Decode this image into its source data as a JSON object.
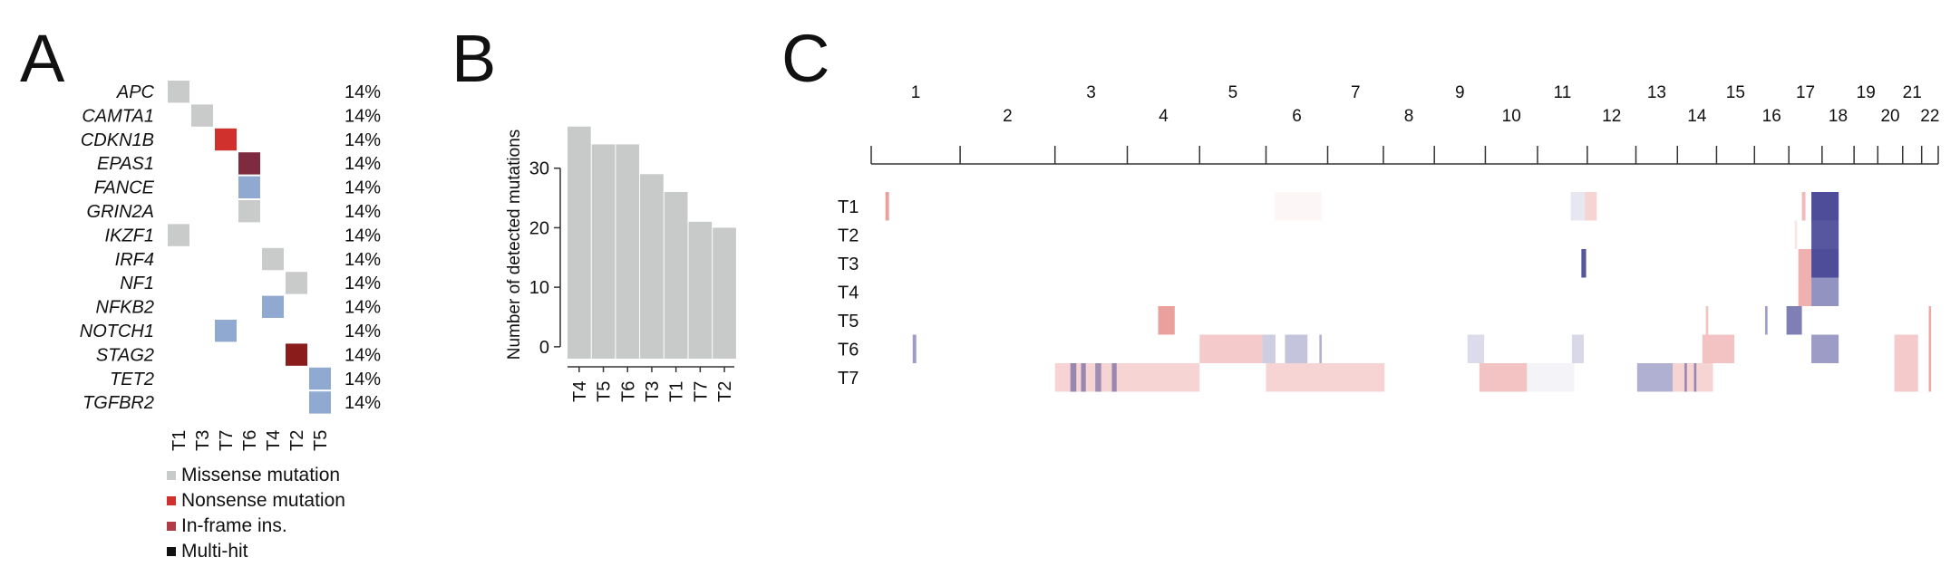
{
  "panels": {
    "a_label": "A",
    "b_label": "B",
    "c_label": "C"
  },
  "colors": {
    "missense": "#c9cbca",
    "nonsense": "#d0312d",
    "inframe": "#7e2a3f",
    "inframe_legend": "#b03c48",
    "multihit": "#111111",
    "blue": "#8fa9d1",
    "darkred": "#8b1c1c",
    "bar": "#c8cac9",
    "gain": "#d9534f",
    "loss": "#3a3a8f"
  },
  "chart_data": [
    {
      "type": "heatmap",
      "genes": [
        "APC",
        "CAMTA1",
        "CDKN1B",
        "EPAS1",
        "FANCE",
        "GRIN2A",
        "IKZF1",
        "IRF4",
        "NF1",
        "NFKB2",
        "NOTCH1",
        "STAG2",
        "TET2",
        "TGFBR2"
      ],
      "percentages": [
        "14%",
        "14%",
        "14%",
        "14%",
        "14%",
        "14%",
        "14%",
        "14%",
        "14%",
        "14%",
        "14%",
        "14%",
        "14%",
        "14%"
      ],
      "samples": [
        "T1",
        "T3",
        "T7",
        "T6",
        "T4",
        "T2",
        "T5"
      ],
      "cells": [
        {
          "gene": "APC",
          "sample": "T1",
          "type": "missense"
        },
        {
          "gene": "CAMTA1",
          "sample": "T3",
          "type": "missense"
        },
        {
          "gene": "CDKN1B",
          "sample": "T7",
          "type": "nonsense"
        },
        {
          "gene": "EPAS1",
          "sample": "T6",
          "type": "inframe"
        },
        {
          "gene": "FANCE",
          "sample": "T6",
          "type": "blue"
        },
        {
          "gene": "GRIN2A",
          "sample": "T6",
          "type": "missense"
        },
        {
          "gene": "IKZF1",
          "sample": "T1",
          "type": "missense"
        },
        {
          "gene": "IRF4",
          "sample": "T4",
          "type": "missense"
        },
        {
          "gene": "NF1",
          "sample": "T2",
          "type": "missense"
        },
        {
          "gene": "NFKB2",
          "sample": "T4",
          "type": "blue"
        },
        {
          "gene": "NOTCH1",
          "sample": "T7",
          "type": "blue"
        },
        {
          "gene": "STAG2",
          "sample": "T2",
          "type": "darkred"
        },
        {
          "gene": "TET2",
          "sample": "T5",
          "type": "blue"
        },
        {
          "gene": "TGFBR2",
          "sample": "T5",
          "type": "blue"
        }
      ],
      "legend": [
        {
          "label": "Missense mutation",
          "color_key": "missense"
        },
        {
          "label": "Nonsense mutation",
          "color_key": "nonsense"
        },
        {
          "label": "In-frame ins.",
          "color_key": "inframe_legend"
        },
        {
          "label": "Multi-hit",
          "color_key": "multihit"
        }
      ]
    },
    {
      "type": "bar",
      "categories": [
        "T4",
        "T5",
        "T6",
        "T3",
        "T1",
        "T7",
        "T2"
      ],
      "values": [
        37,
        34,
        34,
        29,
        26,
        21,
        20
      ],
      "ylabel": "Number of detected mutations",
      "yticks": [
        0,
        10,
        20,
        30
      ],
      "ylim": [
        -2,
        40
      ]
    },
    {
      "type": "heatmap",
      "samples": [
        "T1",
        "T2",
        "T3",
        "T4",
        "T5",
        "T6",
        "T7"
      ],
      "chromosomes": [
        {
          "label": "1",
          "start": 0,
          "end": 7.5
        },
        {
          "label": "2",
          "start": 7.5,
          "end": 15.5
        },
        {
          "label": "3",
          "start": 15.5,
          "end": 21.6
        },
        {
          "label": "4",
          "start": 21.6,
          "end": 27.7
        },
        {
          "label": "5",
          "start": 27.7,
          "end": 33.3
        },
        {
          "label": "6",
          "start": 33.3,
          "end": 38.5
        },
        {
          "label": "7",
          "start": 38.5,
          "end": 43.2
        },
        {
          "label": "8",
          "start": 43.2,
          "end": 47.5
        },
        {
          "label": "9",
          "start": 47.5,
          "end": 51.8
        },
        {
          "label": "10",
          "start": 51.8,
          "end": 56.2
        },
        {
          "label": "11",
          "start": 56.2,
          "end": 60.4
        },
        {
          "label": "12",
          "start": 60.4,
          "end": 64.5
        },
        {
          "label": "13",
          "start": 64.5,
          "end": 68.0
        },
        {
          "label": "14",
          "start": 68.0,
          "end": 71.3
        },
        {
          "label": "15",
          "start": 71.3,
          "end": 74.5
        },
        {
          "label": "16",
          "start": 74.5,
          "end": 77.4
        },
        {
          "label": "17",
          "start": 77.4,
          "end": 80.2
        },
        {
          "label": "18",
          "start": 80.2,
          "end": 82.9
        },
        {
          "label": "19",
          "start": 82.9,
          "end": 84.9
        },
        {
          "label": "20",
          "start": 84.9,
          "end": 87.0
        },
        {
          "label": "21",
          "start": 87.0,
          "end": 88.6
        },
        {
          "label": "22",
          "start": 88.6,
          "end": 90.0
        }
      ],
      "segments": [
        {
          "sample": "T1",
          "start": 1.2,
          "end": 1.5,
          "type": "gain",
          "alpha": 0.55
        },
        {
          "sample": "T1",
          "start": 34.0,
          "end": 38.0,
          "type": "gain",
          "alpha": 0.05
        },
        {
          "sample": "T1",
          "start": 59.0,
          "end": 60.2,
          "type": "loss",
          "alpha": 0.12
        },
        {
          "sample": "T1",
          "start": 60.2,
          "end": 61.2,
          "type": "gain",
          "alpha": 0.25
        },
        {
          "sample": "T1",
          "start": 78.5,
          "end": 78.8,
          "type": "gain",
          "alpha": 0.4
        },
        {
          "sample": "T1",
          "start": 79.3,
          "end": 81.6,
          "type": "loss",
          "alpha": 0.9
        },
        {
          "sample": "T2",
          "start": 77.9,
          "end": 78.1,
          "type": "gain",
          "alpha": 0.15
        },
        {
          "sample": "T2",
          "start": 79.3,
          "end": 81.6,
          "type": "loss",
          "alpha": 0.85
        },
        {
          "sample": "T3",
          "start": 59.9,
          "end": 60.3,
          "type": "loss",
          "alpha": 0.85
        },
        {
          "sample": "T3",
          "start": 78.2,
          "end": 79.3,
          "type": "gain",
          "alpha": 0.45
        },
        {
          "sample": "T3",
          "start": 79.3,
          "end": 81.6,
          "type": "loss",
          "alpha": 0.9
        },
        {
          "sample": "T4",
          "start": 78.2,
          "end": 79.3,
          "type": "gain",
          "alpha": 0.45
        },
        {
          "sample": "T4",
          "start": 79.3,
          "end": 81.6,
          "type": "loss",
          "alpha": 0.55
        },
        {
          "sample": "T5",
          "start": 24.2,
          "end": 25.6,
          "type": "gain",
          "alpha": 0.55
        },
        {
          "sample": "T5",
          "start": 70.4,
          "end": 70.6,
          "type": "gain",
          "alpha": 0.35
        },
        {
          "sample": "T5",
          "start": 75.4,
          "end": 75.6,
          "type": "loss",
          "alpha": 0.5
        },
        {
          "sample": "T5",
          "start": 77.2,
          "end": 78.5,
          "type": "loss",
          "alpha": 0.65
        },
        {
          "sample": "T5",
          "start": 89.2,
          "end": 89.4,
          "type": "gain",
          "alpha": 0.5
        },
        {
          "sample": "T6",
          "start": 3.5,
          "end": 3.8,
          "type": "loss",
          "alpha": 0.5
        },
        {
          "sample": "T6",
          "start": 27.7,
          "end": 33.0,
          "type": "gain",
          "alpha": 0.3
        },
        {
          "sample": "T6",
          "start": 33.0,
          "end": 34.1,
          "type": "loss",
          "alpha": 0.25
        },
        {
          "sample": "T6",
          "start": 34.9,
          "end": 36.8,
          "type": "loss",
          "alpha": 0.3
        },
        {
          "sample": "T6",
          "start": 37.8,
          "end": 38.0,
          "type": "loss",
          "alpha": 0.4
        },
        {
          "sample": "T6",
          "start": 50.3,
          "end": 51.7,
          "type": "loss",
          "alpha": 0.18
        },
        {
          "sample": "T6",
          "start": 59.1,
          "end": 60.1,
          "type": "loss",
          "alpha": 0.2
        },
        {
          "sample": "T6",
          "start": 70.1,
          "end": 72.8,
          "type": "gain",
          "alpha": 0.35
        },
        {
          "sample": "T6",
          "start": 79.3,
          "end": 81.6,
          "type": "loss",
          "alpha": 0.5
        },
        {
          "sample": "T6",
          "start": 86.3,
          "end": 88.3,
          "type": "gain",
          "alpha": 0.3
        },
        {
          "sample": "T6",
          "start": 89.2,
          "end": 89.4,
          "type": "gain",
          "alpha": 0.5
        },
        {
          "sample": "T7",
          "start": 15.5,
          "end": 27.7,
          "type": "gain",
          "alpha": 0.25
        },
        {
          "sample": "T7",
          "start": 16.8,
          "end": 17.3,
          "type": "loss",
          "alpha": 0.5
        },
        {
          "sample": "T7",
          "start": 17.7,
          "end": 18.1,
          "type": "loss",
          "alpha": 0.5
        },
        {
          "sample": "T7",
          "start": 18.9,
          "end": 19.4,
          "type": "loss",
          "alpha": 0.45
        },
        {
          "sample": "T7",
          "start": 20.3,
          "end": 20.7,
          "type": "loss",
          "alpha": 0.5
        },
        {
          "sample": "T7",
          "start": 33.3,
          "end": 43.3,
          "type": "gain",
          "alpha": 0.25
        },
        {
          "sample": "T7",
          "start": 51.3,
          "end": 55.3,
          "type": "gain",
          "alpha": 0.35
        },
        {
          "sample": "T7",
          "start": 55.3,
          "end": 59.3,
          "type": "loss",
          "alpha": 0.06
        },
        {
          "sample": "T7",
          "start": 64.6,
          "end": 67.6,
          "type": "loss",
          "alpha": 0.4
        },
        {
          "sample": "T7",
          "start": 67.6,
          "end": 71.0,
          "type": "gain",
          "alpha": 0.25
        },
        {
          "sample": "T7",
          "start": 68.6,
          "end": 68.8,
          "type": "loss",
          "alpha": 0.5
        },
        {
          "sample": "T7",
          "start": 69.4,
          "end": 69.6,
          "type": "loss",
          "alpha": 0.5
        },
        {
          "sample": "T7",
          "start": 86.3,
          "end": 88.3,
          "type": "gain",
          "alpha": 0.3
        },
        {
          "sample": "T7",
          "start": 89.2,
          "end": 89.4,
          "type": "gain",
          "alpha": 0.5
        }
      ]
    }
  ]
}
